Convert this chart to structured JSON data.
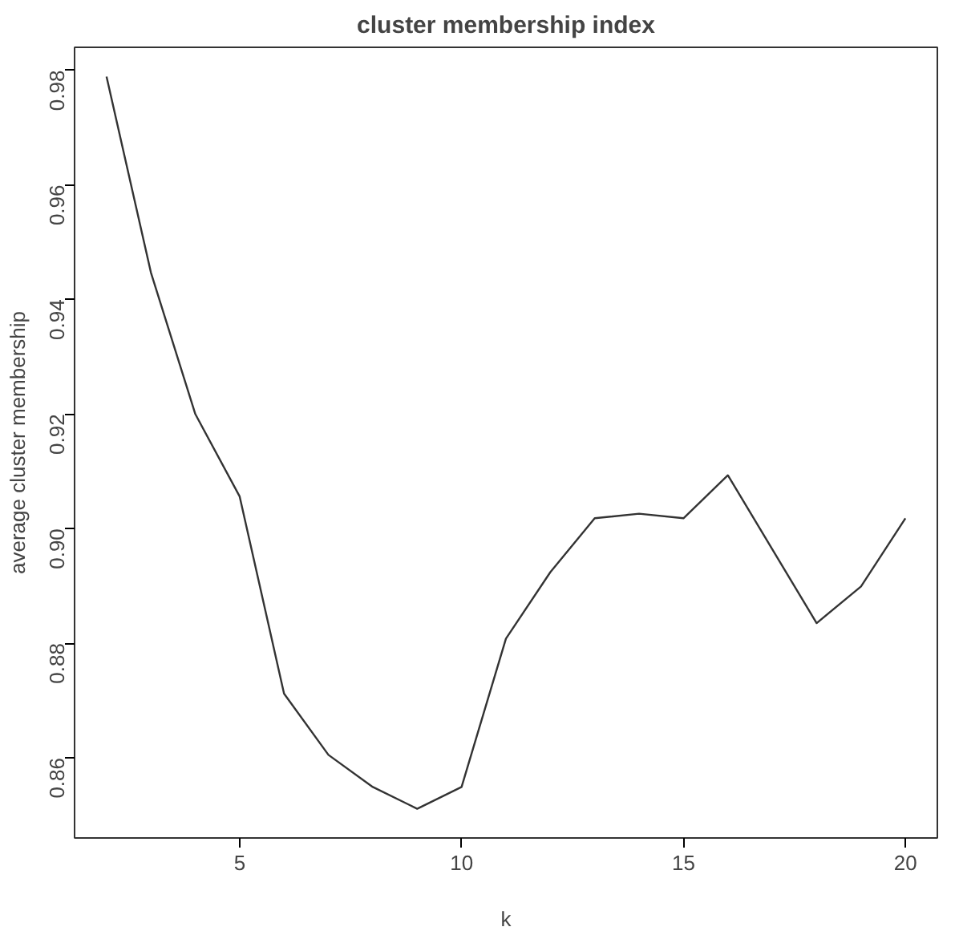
{
  "chart_data": {
    "type": "line",
    "title": "cluster membership index",
    "xlabel": "k",
    "ylabel": "average cluster membership",
    "x": [
      2,
      3,
      4,
      5,
      6,
      7,
      8,
      9,
      10,
      11,
      12,
      13,
      14,
      15,
      16,
      17,
      18,
      19,
      20
    ],
    "series": [
      {
        "color": "#333333",
        "values": [
          0.9789,
          0.9447,
          0.92,
          0.9056,
          0.8712,
          0.8605,
          0.8549,
          0.8511,
          0.8549,
          0.8808,
          0.8924,
          0.9018,
          0.9026,
          0.9018,
          0.9093,
          0.8964,
          0.8835,
          0.8899,
          0.9018
        ]
      }
    ],
    "xlim": [
      1.28,
      20.72
    ],
    "ylim": [
      0.846,
      0.984
    ],
    "xticks": [
      5,
      10,
      15,
      20
    ],
    "yticks": [
      {
        "value": 0.86,
        "label": "0.86"
      },
      {
        "value": 0.88,
        "label": "0.88"
      },
      {
        "value": 0.9,
        "label": "0.90"
      },
      {
        "value": 0.92,
        "label": "0.92"
      },
      {
        "value": 0.94,
        "label": "0.94"
      },
      {
        "value": 0.96,
        "label": "0.96"
      },
      {
        "value": 0.98,
        "label": "0.98"
      }
    ],
    "grid": false,
    "marker": "none",
    "line_style": "solid"
  }
}
